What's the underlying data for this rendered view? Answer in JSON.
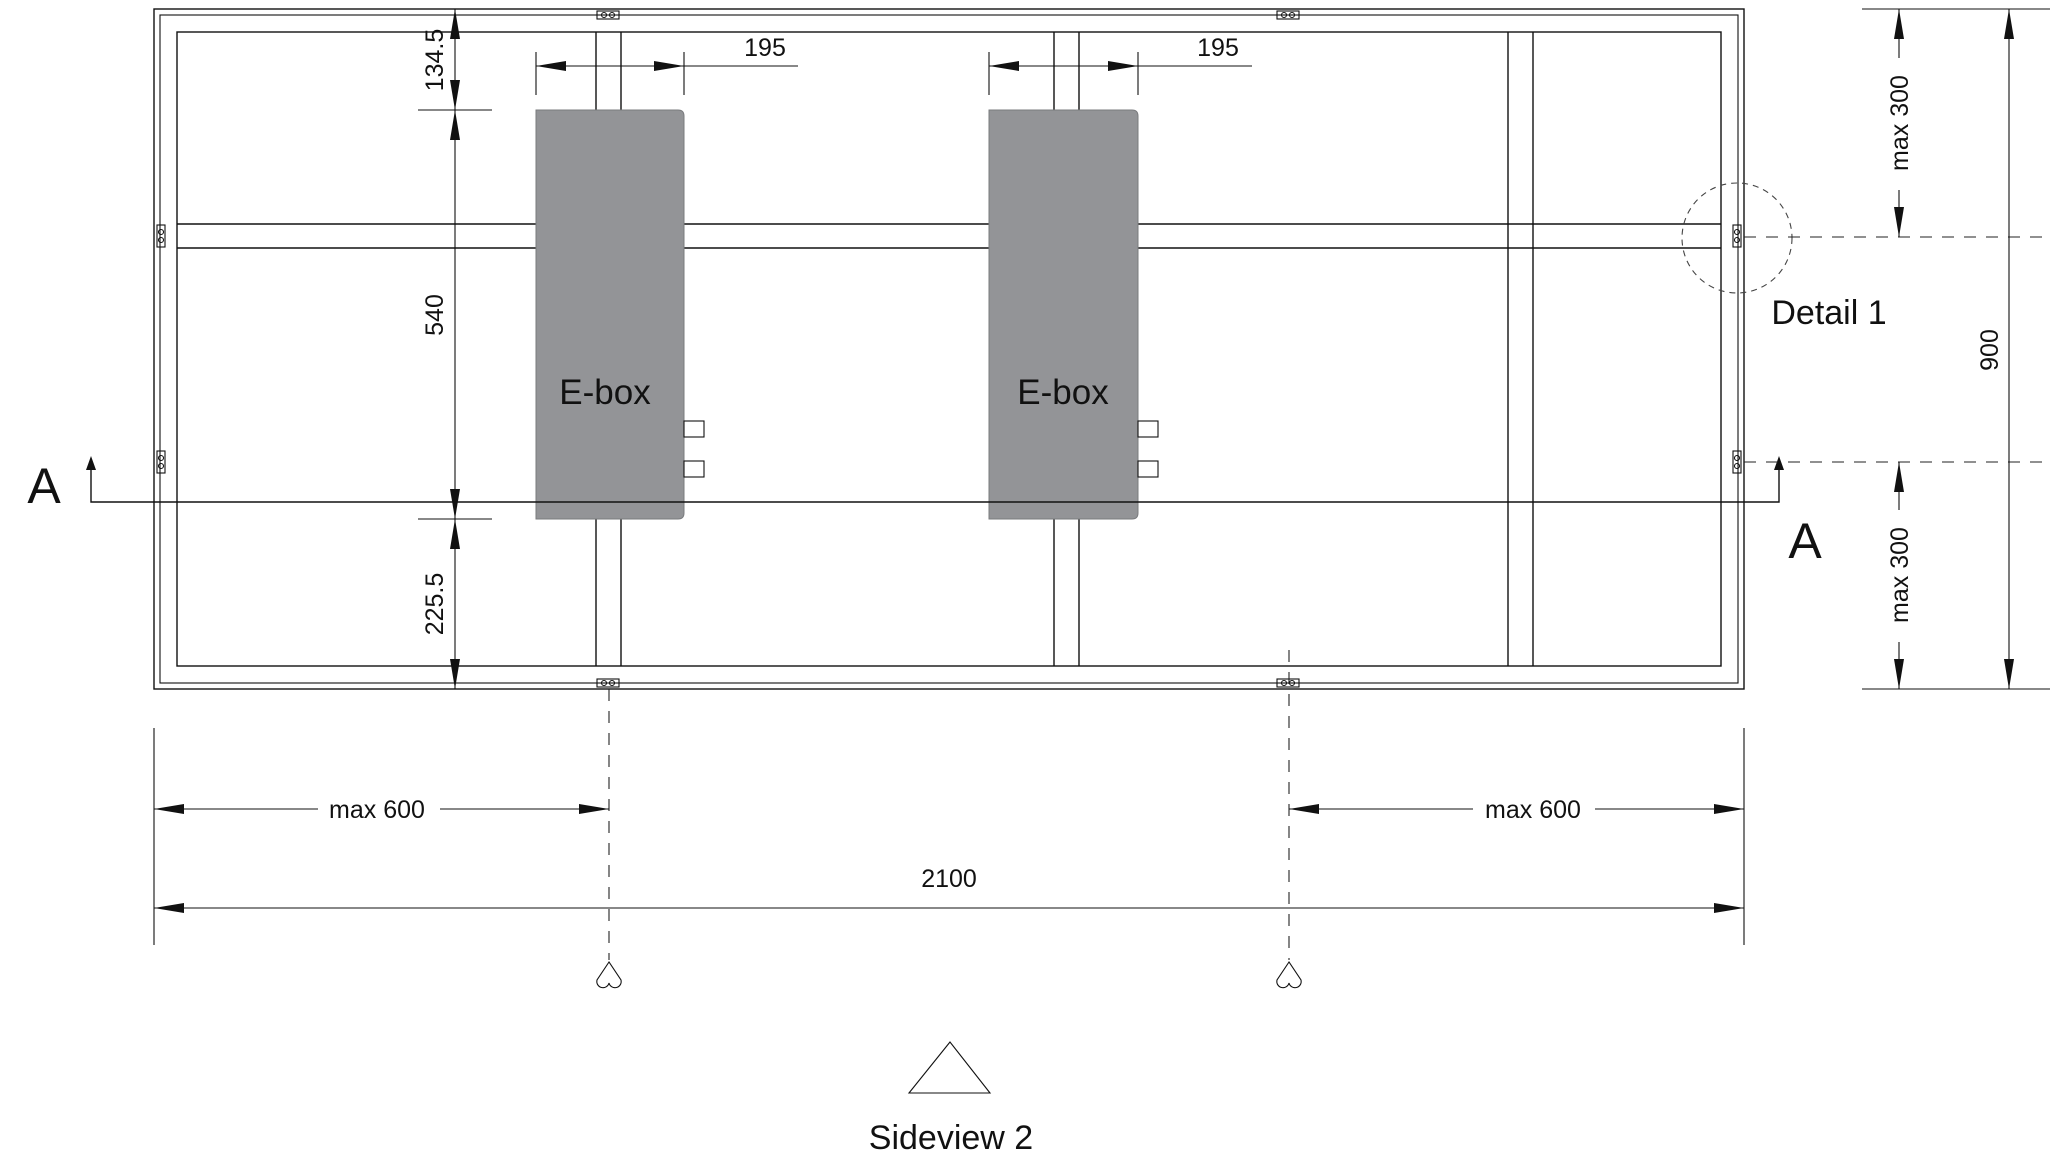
{
  "ebox": {
    "label": "E-box"
  },
  "dimensions": {
    "top_gap": "134.5",
    "ebox_width_left": "195",
    "ebox_width_right": "195",
    "ebox_height": "540",
    "bottom_gap": "225.5",
    "max_top_right": "max 300",
    "max_bottom_right": "max 300",
    "total_height": "900",
    "max_left": "max 600",
    "max_right": "max 600",
    "total_width": "2100"
  },
  "section": {
    "left_label": "A",
    "right_label": "A"
  },
  "detail": {
    "label": "Detail 1"
  },
  "sideview": {
    "label": "Sideview 2"
  }
}
